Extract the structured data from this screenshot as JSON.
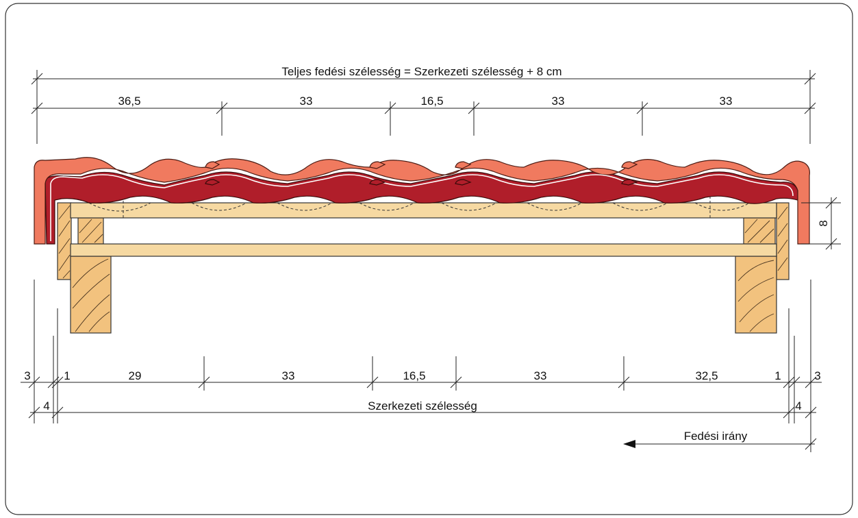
{
  "top_title": "Teljes fedési szélesség = Szerkezeti szélesség + 8 cm",
  "top_dims": [
    "36,5",
    "33",
    "16,5",
    "33",
    "33"
  ],
  "bottom_dims": [
    "3",
    "1",
    "29",
    "33",
    "16,5",
    "33",
    "32,5",
    "1",
    "3"
  ],
  "bottom_outer": [
    "4",
    "4"
  ],
  "bottom_title": "Szerkezeti szélesség",
  "side_dim": "8",
  "direction_label": "Fedési irány",
  "colors": {
    "tile_front": "#f07a5f",
    "tile_back": "#b01e2a",
    "timber": "#f2c27e",
    "batten": "#f6d9a2"
  }
}
